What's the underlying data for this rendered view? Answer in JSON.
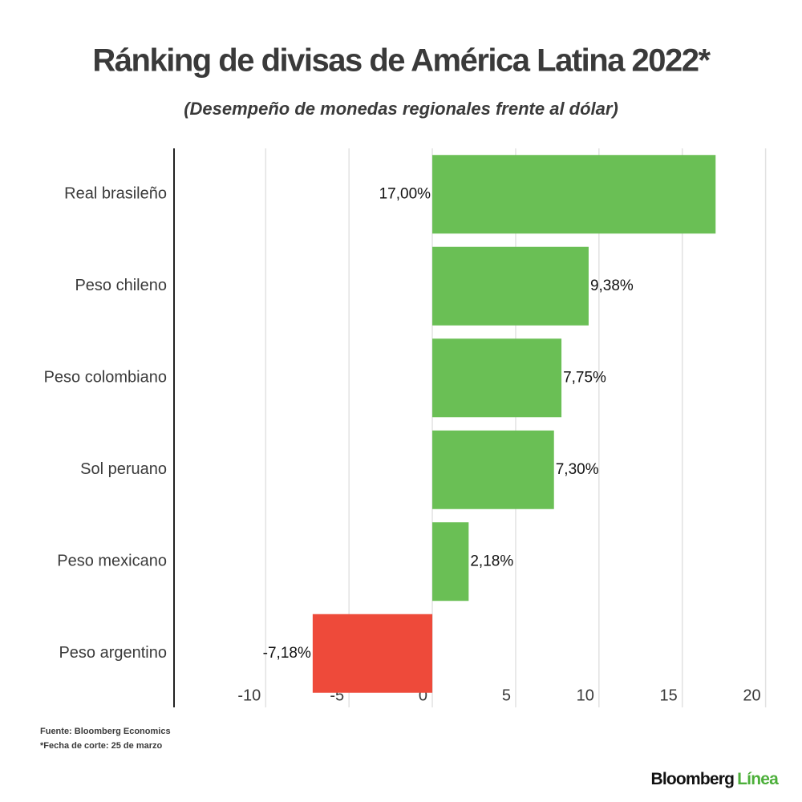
{
  "chart_data": {
    "type": "bar",
    "orientation": "horizontal",
    "title": "Ránking de divisas de América Latina 2022*",
    "subtitle": "(Desempeño de monedas regionales frente al dólar)",
    "categories": [
      "Real brasileño",
      "Peso chileno",
      "Peso colombiano",
      "Sol peruano",
      "Peso mexicano",
      "Peso argentino"
    ],
    "values": [
      17.0,
      9.38,
      7.75,
      7.3,
      2.18,
      -7.18
    ],
    "value_labels": [
      "17,00%",
      "9,38%",
      "7,75%",
      "7,30%",
      "2,18%",
      "-7,18%"
    ],
    "positive_color": "#6abf55",
    "negative_color": "#ee4a3a",
    "xlim": [
      -15.5,
      20.5
    ],
    "xticks": [
      -10,
      -5,
      0,
      5,
      10,
      15,
      20
    ],
    "grid": true,
    "notes": [
      "Fuente: Bloomberg Economics",
      "*Fecha de corte: 25 de marzo"
    ]
  },
  "brand": {
    "name": "Bloomberg",
    "suffix": "Línea"
  }
}
